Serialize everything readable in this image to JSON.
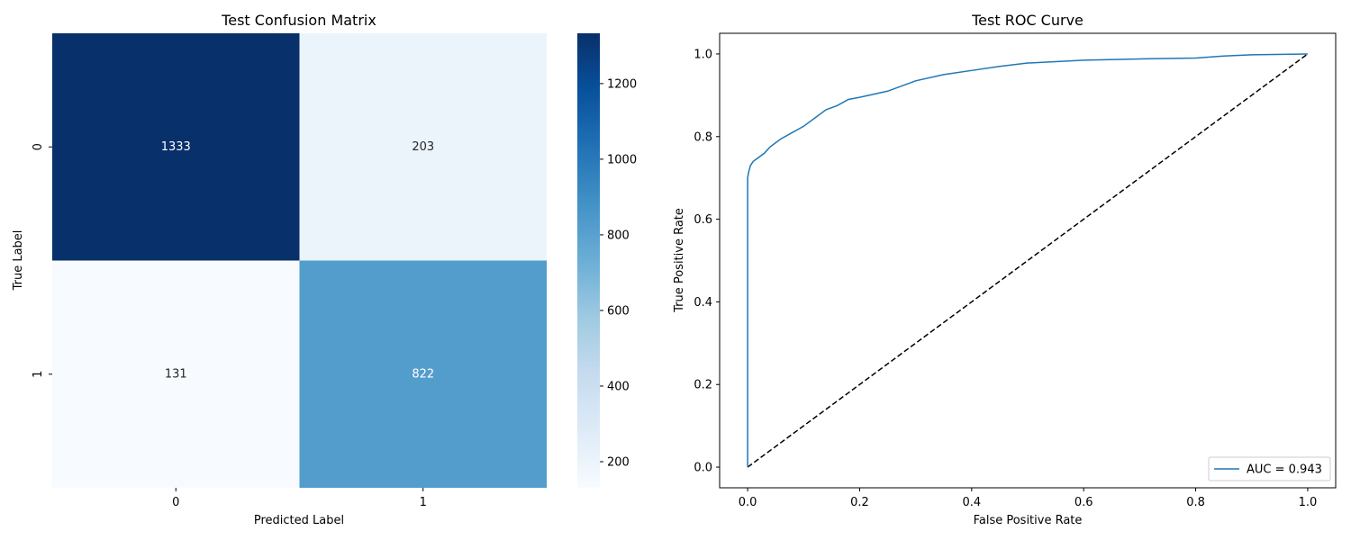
{
  "chart_data": [
    {
      "type": "heatmap",
      "title": "Test Confusion Matrix",
      "xlabel": "Predicted Label",
      "ylabel": "True Label",
      "x_categories": [
        "0",
        "1"
      ],
      "y_categories": [
        "0",
        "1"
      ],
      "values": [
        [
          1333,
          203
        ],
        [
          131,
          822
        ]
      ],
      "colormap": "Blues",
      "colorbar": {
        "min": 131,
        "max": 1333,
        "ticks": [
          "200",
          "400",
          "600",
          "800",
          "1000",
          "1200"
        ],
        "tick_values": [
          200,
          400,
          600,
          800,
          1000,
          1200
        ]
      },
      "colors": {
        "low": "#f7fbff",
        "high": "#08306b"
      }
    },
    {
      "type": "line",
      "title": "Test ROC Curve",
      "xlabel": "False Positive Rate",
      "ylabel": "True Positive Rate",
      "xlim": [
        -0.05,
        1.05
      ],
      "ylim": [
        -0.05,
        1.05
      ],
      "x_ticks": [
        "0.0",
        "0.2",
        "0.4",
        "0.6",
        "0.8",
        "1.0"
      ],
      "y_ticks": [
        "0.0",
        "0.2",
        "0.4",
        "0.6",
        "0.8",
        "1.0"
      ],
      "legend_position": "lower-right",
      "series": [
        {
          "name": "AUC = 0.943",
          "color": "#1f77b4",
          "x": [
            0.0,
            0.0,
            0.002,
            0.005,
            0.01,
            0.02,
            0.03,
            0.04,
            0.05,
            0.06,
            0.08,
            0.1,
            0.12,
            0.14,
            0.16,
            0.18,
            0.2,
            0.25,
            0.3,
            0.35,
            0.4,
            0.45,
            0.5,
            0.6,
            0.7,
            0.8,
            0.85,
            0.9,
            1.0
          ],
          "y": [
            0.0,
            0.7,
            0.715,
            0.73,
            0.74,
            0.75,
            0.76,
            0.775,
            0.785,
            0.795,
            0.81,
            0.825,
            0.845,
            0.865,
            0.875,
            0.89,
            0.895,
            0.91,
            0.935,
            0.95,
            0.96,
            0.97,
            0.978,
            0.985,
            0.988,
            0.99,
            0.995,
            0.998,
            1.0
          ]
        },
        {
          "name": "",
          "color": "#000000",
          "dashed": true,
          "x": [
            0.0,
            1.0
          ],
          "y": [
            0.0,
            1.0
          ]
        }
      ]
    }
  ]
}
